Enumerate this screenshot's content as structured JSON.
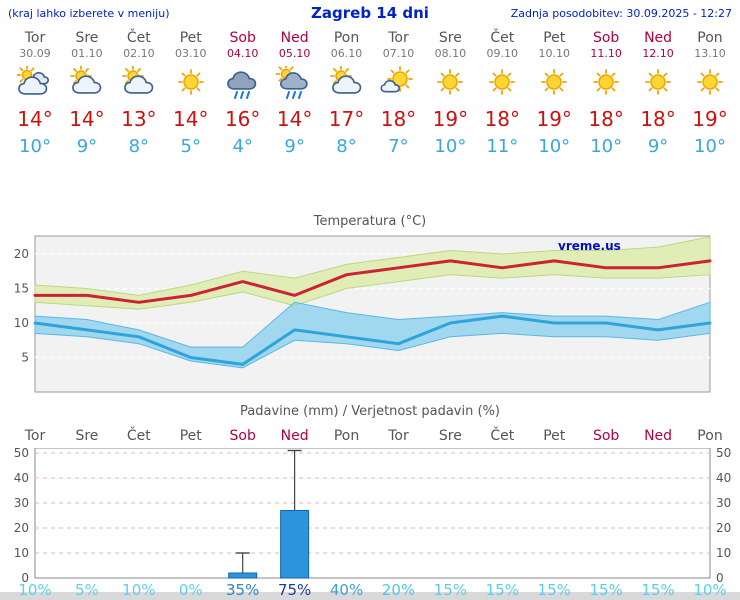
{
  "header": {
    "left_note": "(kraj lahko izberete v meniju)",
    "title": "Zagreb 14 dni",
    "last_update": "Zadnja posodobitev: 30.09.2025 - 12:27"
  },
  "days": [
    {
      "name": "Tor",
      "date": "30.09",
      "weekend": false,
      "icon": "cloudy",
      "tmax": "14°",
      "tmin": "10°"
    },
    {
      "name": "Sre",
      "date": "01.10",
      "weekend": false,
      "icon": "partly-cloudy",
      "tmax": "14°",
      "tmin": "9°"
    },
    {
      "name": "Čet",
      "date": "02.10",
      "weekend": false,
      "icon": "partly-cloudy",
      "tmax": "13°",
      "tmin": "8°"
    },
    {
      "name": "Pet",
      "date": "03.10",
      "weekend": false,
      "icon": "sunny",
      "tmax": "14°",
      "tmin": "5°"
    },
    {
      "name": "Sob",
      "date": "04.10",
      "weekend": true,
      "icon": "rain",
      "tmax": "16°",
      "tmin": "4°"
    },
    {
      "name": "Ned",
      "date": "05.10",
      "weekend": true,
      "icon": "rain-sun",
      "tmax": "14°",
      "tmin": "9°"
    },
    {
      "name": "Pon",
      "date": "06.10",
      "weekend": false,
      "icon": "partly-cloudy",
      "tmax": "17°",
      "tmin": "8°"
    },
    {
      "name": "Tor",
      "date": "07.10",
      "weekend": false,
      "icon": "partly-sunny",
      "tmax": "18°",
      "tmin": "7°"
    },
    {
      "name": "Sre",
      "date": "08.10",
      "weekend": false,
      "icon": "sunny",
      "tmax": "19°",
      "tmin": "10°"
    },
    {
      "name": "Čet",
      "date": "09.10",
      "weekend": false,
      "icon": "sunny",
      "tmax": "18°",
      "tmin": "11°"
    },
    {
      "name": "Pet",
      "date": "10.10",
      "weekend": false,
      "icon": "sunny",
      "tmax": "19°",
      "tmin": "10°"
    },
    {
      "name": "Sob",
      "date": "11.10",
      "weekend": true,
      "icon": "sunny",
      "tmax": "18°",
      "tmin": "10°"
    },
    {
      "name": "Ned",
      "date": "12.10",
      "weekend": true,
      "icon": "sunny",
      "tmax": "18°",
      "tmin": "9°"
    },
    {
      "name": "Pon",
      "date": "13.10",
      "weekend": false,
      "icon": "sunny",
      "tmax": "19°",
      "tmin": "10°"
    }
  ],
  "chart_data": [
    {
      "type": "area",
      "title": "Temperatura (°C)",
      "x_labels": [
        "Tor",
        "Sre",
        "Čet",
        "Pet",
        "Sob",
        "Ned",
        "Pon",
        "Tor",
        "Sre",
        "Čet",
        "Pet",
        "Sob",
        "Ned",
        "Pon"
      ],
      "ylim": [
        0,
        22.5
      ],
      "yticks": [
        5,
        10,
        15,
        20
      ],
      "grid": true,
      "watermark": "vreme.us",
      "series": [
        {
          "name": "max-temp",
          "color": "#cc2233",
          "values": [
            14,
            14,
            13,
            14,
            16,
            14,
            17,
            18,
            19,
            18,
            19,
            18,
            18,
            19
          ]
        },
        {
          "name": "min-temp",
          "color": "#2fa3dc",
          "values": [
            10,
            9,
            8,
            5,
            4,
            9,
            8,
            7,
            10,
            11,
            10,
            10,
            9,
            10
          ]
        }
      ],
      "bands": [
        {
          "name": "max-range",
          "color": "#dcecaa",
          "edge": "#bdd87e",
          "high": [
            15.5,
            15,
            14,
            15.5,
            17.5,
            16.5,
            18.5,
            19.5,
            20.5,
            20,
            20.5,
            20.5,
            21,
            22.5
          ],
          "low": [
            13,
            12.5,
            12,
            13,
            14.5,
            12.5,
            15,
            16,
            17,
            16.5,
            17,
            16.5,
            16.5,
            17
          ]
        },
        {
          "name": "min-range",
          "color": "#8fd2ef",
          "edge": "#5ab8e2",
          "high": [
            11,
            10.5,
            9,
            6.5,
            6.5,
            13,
            11.5,
            10.5,
            11,
            11.5,
            11,
            11,
            10.5,
            13
          ],
          "low": [
            8.5,
            8,
            7,
            4.5,
            3.5,
            7.5,
            7,
            6,
            8,
            8.5,
            8,
            8,
            7.5,
            8.5
          ]
        }
      ]
    },
    {
      "type": "bar",
      "title": "Padavine (mm) / Verjetnost padavin (%)",
      "x_labels": [
        "Tor",
        "Sre",
        "Čet",
        "Pet",
        "Sob",
        "Ned",
        "Pon",
        "Tor",
        "Sre",
        "Čet",
        "Pet",
        "Sob",
        "Ned",
        "Pon"
      ],
      "weekend_flags": [
        false,
        false,
        false,
        false,
        true,
        true,
        false,
        false,
        false,
        false,
        false,
        true,
        true,
        false
      ],
      "ylim": [
        0,
        52
      ],
      "yticks": [
        0,
        10,
        20,
        30,
        40,
        50
      ],
      "bar_color": "#2d93dd",
      "bar_edge": "#1266ad",
      "values": [
        0,
        0,
        0,
        0,
        2,
        27,
        0,
        0,
        0,
        0,
        0,
        0,
        0,
        0
      ],
      "whisker_high": [
        0,
        0,
        0,
        0,
        10,
        51,
        0,
        0,
        0,
        0,
        0,
        0,
        0,
        0
      ],
      "probabilities": [
        {
          "label": "10%",
          "color": "#5bd0f2"
        },
        {
          "label": "5%",
          "color": "#5bd0f2"
        },
        {
          "label": "10%",
          "color": "#5bd0f2"
        },
        {
          "label": "0%",
          "color": "#5bd0f2"
        },
        {
          "label": "35%",
          "color": "#2f86c6"
        },
        {
          "label": "75%",
          "color": "#1b3aa0"
        },
        {
          "label": "40%",
          "color": "#3fa0d8"
        },
        {
          "label": "20%",
          "color": "#4fc6ec"
        },
        {
          "label": "15%",
          "color": "#58cdf0"
        },
        {
          "label": "15%",
          "color": "#58cdf0"
        },
        {
          "label": "15%",
          "color": "#58cdf0"
        },
        {
          "label": "15%",
          "color": "#58cdf0"
        },
        {
          "label": "15%",
          "color": "#58cdf0"
        },
        {
          "label": "10%",
          "color": "#5bd0f2"
        }
      ]
    }
  ]
}
